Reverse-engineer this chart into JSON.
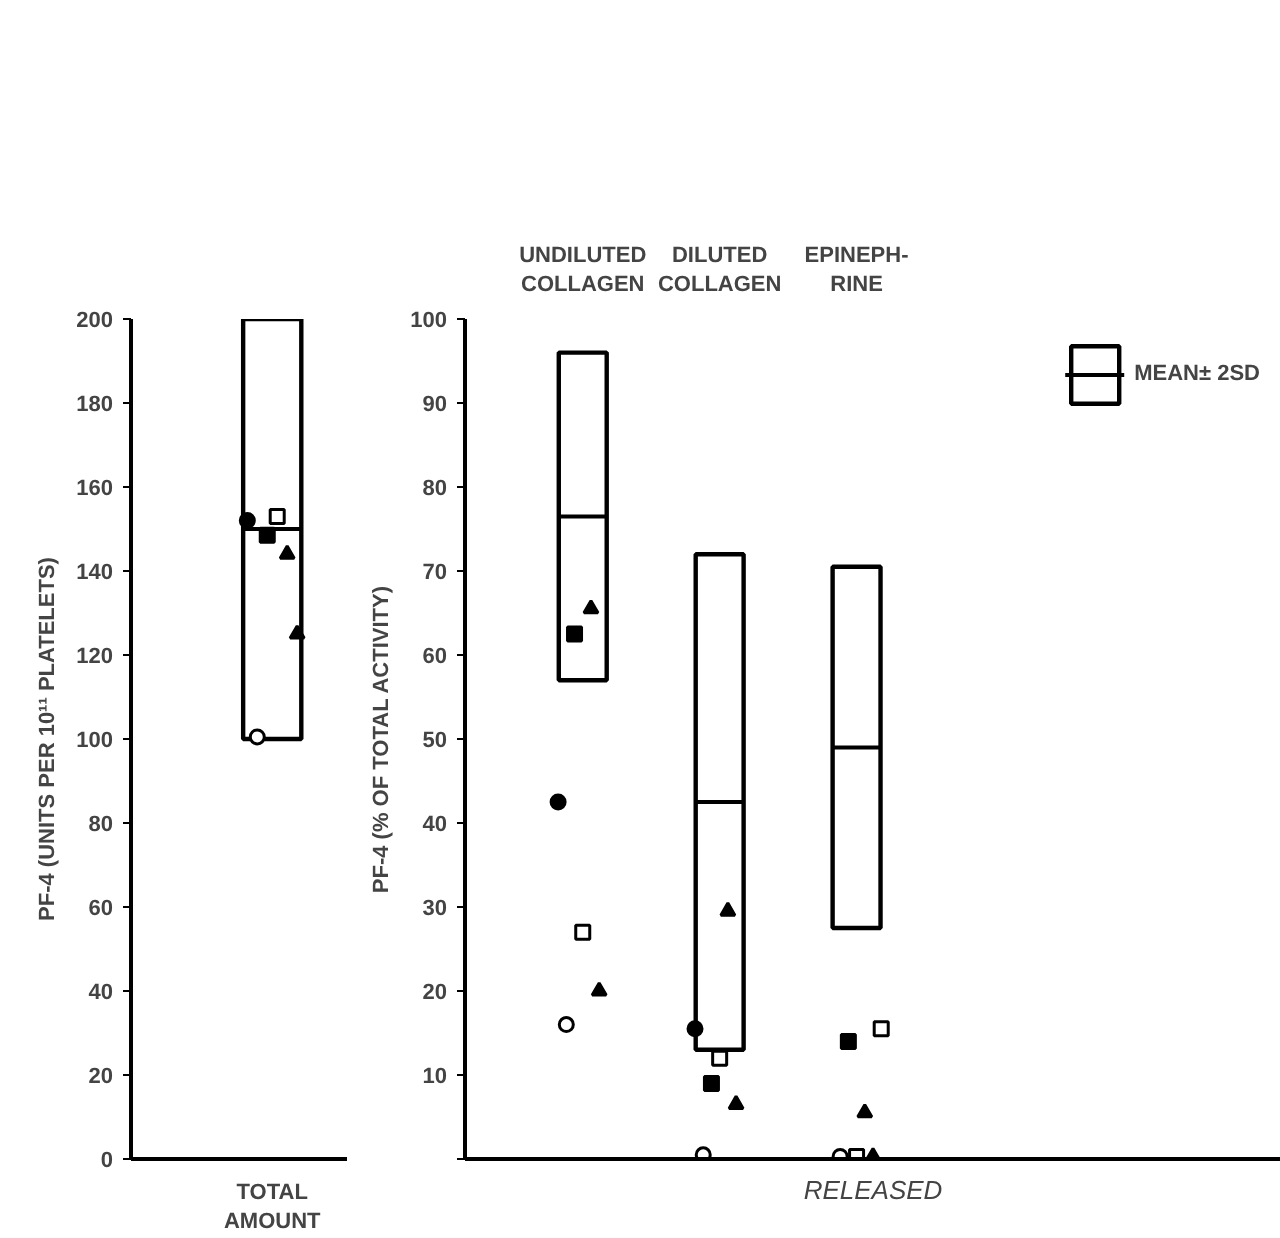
{
  "chart_data": [
    {
      "type": "box",
      "categories": [
        "TOTAL\nAMOUNT"
      ],
      "ylabel": "PF-4 (UNITS PER 10¹¹ PLATELETS)",
      "ylim": [
        0,
        200
      ],
      "yticks": [
        0,
        20,
        40,
        60,
        80,
        100,
        120,
        140,
        160,
        180,
        200
      ],
      "grid": false,
      "series": [
        {
          "color": "#000000",
          "boxes": [
            {
              "low": 100,
              "q1": 100,
              "median": 150,
              "q3": 200,
              "high": 200
            }
          ]
        },
        {
          "type": "scatter",
          "marker": "circle",
          "color": "#000000",
          "x": [
            "TOTAL\nAMOUNT"
          ],
          "values": [
            152
          ]
        },
        {
          "type": "scatter",
          "marker": "circle",
          "color": "#ffffff",
          "x": [
            "TOTAL\nAMOUNT"
          ],
          "values": [
            100.5
          ]
        },
        {
          "type": "scatter",
          "marker": "square",
          "color": "#000000",
          "x": [
            "TOTAL\nAMOUNT"
          ],
          "values": [
            148.5
          ]
        },
        {
          "type": "scatter",
          "marker": "square",
          "color": "#ffffff",
          "x": [
            "TOTAL\nAMOUNT"
          ],
          "values": [
            153
          ]
        },
        {
          "type": "scatter",
          "marker": "triangle",
          "color": "#000000",
          "x": [
            "TOTAL\nAMOUNT"
          ],
          "values": [
            144
          ]
        },
        {
          "type": "scatter",
          "marker": "triangle",
          "color": "#000000",
          "x": [
            "TOTAL\nAMOUNT"
          ],
          "values": [
            125
          ]
        }
      ]
    },
    {
      "type": "box",
      "categories": [
        "UNDILUTED\nCOLLAGEN",
        "DILUTED\nCOLLAGEN",
        "EPINEPH-\nRINE"
      ],
      "xlabel": "RELEASED",
      "ylabel": "PF-4 (% OF TOTAL ACTIVITY)",
      "ylim": [
        0,
        100
      ],
      "yticks": [
        {
          "value": 0,
          "label": null
        },
        10,
        20,
        30,
        40,
        50,
        60,
        70,
        80,
        90,
        100
      ],
      "grid": false,
      "legend": "top right",
      "series": [
        {
          "name": "MEAN± 2SD",
          "color": "#000000",
          "boxes": [
            {
              "low": 57,
              "q1": 57,
              "median": 76.5,
              "q3": 96,
              "high": 96
            },
            {
              "low": 13,
              "q1": 13,
              "median": 42.5,
              "q3": 72,
              "high": 72
            },
            {
              "low": 27.5,
              "q1": 27.5,
              "median": 49,
              "q3": 70.5,
              "high": 70.5
            }
          ]
        },
        {
          "type": "scatter",
          "marker": "circle",
          "color": "#000000",
          "x": [
            "UNDILUTED\nCOLLAGEN",
            "DILUTED\nCOLLAGEN",
            "EPINEPH-\nRINE"
          ],
          "values": [
            42.5,
            15.5,
            null
          ]
        },
        {
          "type": "scatter",
          "marker": "circle",
          "color": "#ffffff",
          "x": [
            "UNDILUTED\nCOLLAGEN",
            "DILUTED\nCOLLAGEN",
            "EPINEPH-\nRINE"
          ],
          "values": [
            16,
            0.5,
            0.3
          ]
        },
        {
          "type": "scatter",
          "marker": "square",
          "color": "#000000",
          "x": [
            "UNDILUTED\nCOLLAGEN",
            "DILUTED\nCOLLAGEN",
            "EPINEPH-\nRINE"
          ],
          "values": [
            62.5,
            9,
            14
          ]
        },
        {
          "type": "scatter",
          "marker": "square",
          "color": "#ffffff",
          "x": [
            "UNDILUTED\nCOLLAGEN",
            "DILUTED\nCOLLAGEN",
            "EPINEPH-\nRINE"
          ],
          "values": [
            27,
            12,
            0.3
          ]
        },
        {
          "type": "scatter",
          "marker": "triangle",
          "color": "#000000",
          "x": [
            "UNDILUTED\nCOLLAGEN",
            "DILUTED\nCOLLAGEN",
            "EPINEPH-\nRINE"
          ],
          "values": [
            65.5,
            29.5,
            5.5
          ]
        },
        {
          "type": "scatter",
          "marker": "triangle",
          "color": "#000000",
          "x": [
            "UNDILUTED\nCOLLAGEN",
            "DILUTED\nCOLLAGEN",
            "EPINEPH-\nRINE"
          ],
          "values": [
            20,
            6.5,
            0.3
          ]
        },
        {
          "type": "scatter",
          "marker": "square",
          "color": "#ffffff",
          "x": [
            "UNDILUTED\nCOLLAGEN",
            "DILUTED\nCOLLAGEN",
            "EPINEPH-\nRINE"
          ],
          "values": [
            null,
            null,
            15.5
          ]
        }
      ]
    }
  ]
}
